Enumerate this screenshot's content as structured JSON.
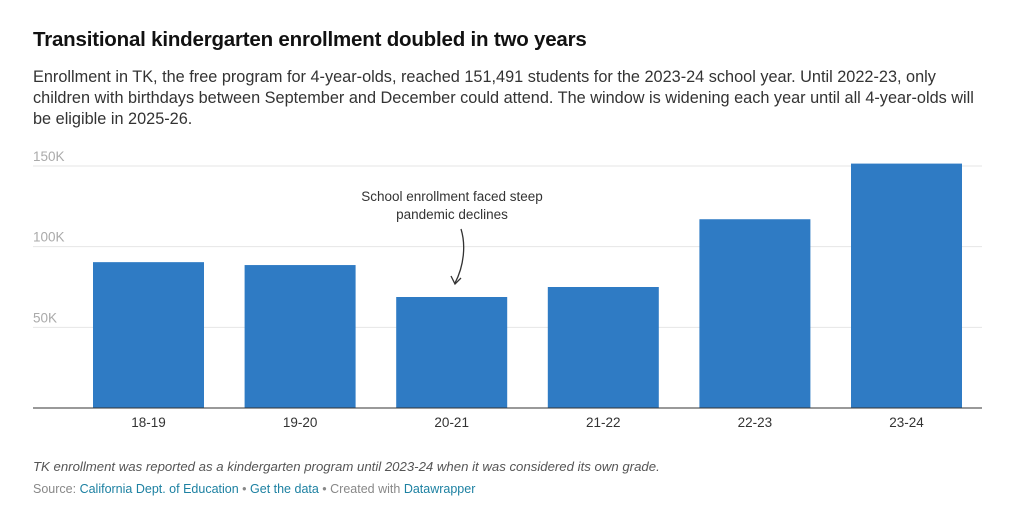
{
  "header": {
    "title": "Transitional kindergarten enrollment doubled in two years",
    "subtitle": "Enrollment in TK, the free program for 4-year-olds, reached 151,491 students for the 2023-24 school year. Until 2022-23, only children with birthdays between September and December could attend. The window is widening each year until all 4-year-olds will be eligible in 2025-26."
  },
  "chart_data": {
    "type": "bar",
    "title": "Transitional kindergarten enrollment doubled in two years",
    "xlabel": "",
    "ylabel": "",
    "categories": [
      "18-19",
      "19-20",
      "20-21",
      "21-22",
      "22-23",
      "23-24"
    ],
    "values": [
      90400,
      88600,
      68800,
      75000,
      117000,
      151491
    ],
    "ylim": [
      0,
      150000
    ],
    "yticks": [
      50000,
      100000,
      150000
    ],
    "ytick_labels": [
      "50K",
      "100K",
      "150K"
    ],
    "grid": true,
    "bar_color": "#2f7bc4",
    "annotation": {
      "line1": "School enrollment faced steep",
      "line2": "pandemic declines",
      "target_category": "20-21"
    }
  },
  "footer": {
    "note": "TK enrollment was reported as a kindergarten program until 2023-24 when it was considered its own grade.",
    "source_label": "Source: ",
    "source_link": "California Dept. of Education",
    "separator": " • ",
    "get_data_link": "Get the data",
    "created_with": "Created with ",
    "datawrapper_link": "Datawrapper"
  }
}
